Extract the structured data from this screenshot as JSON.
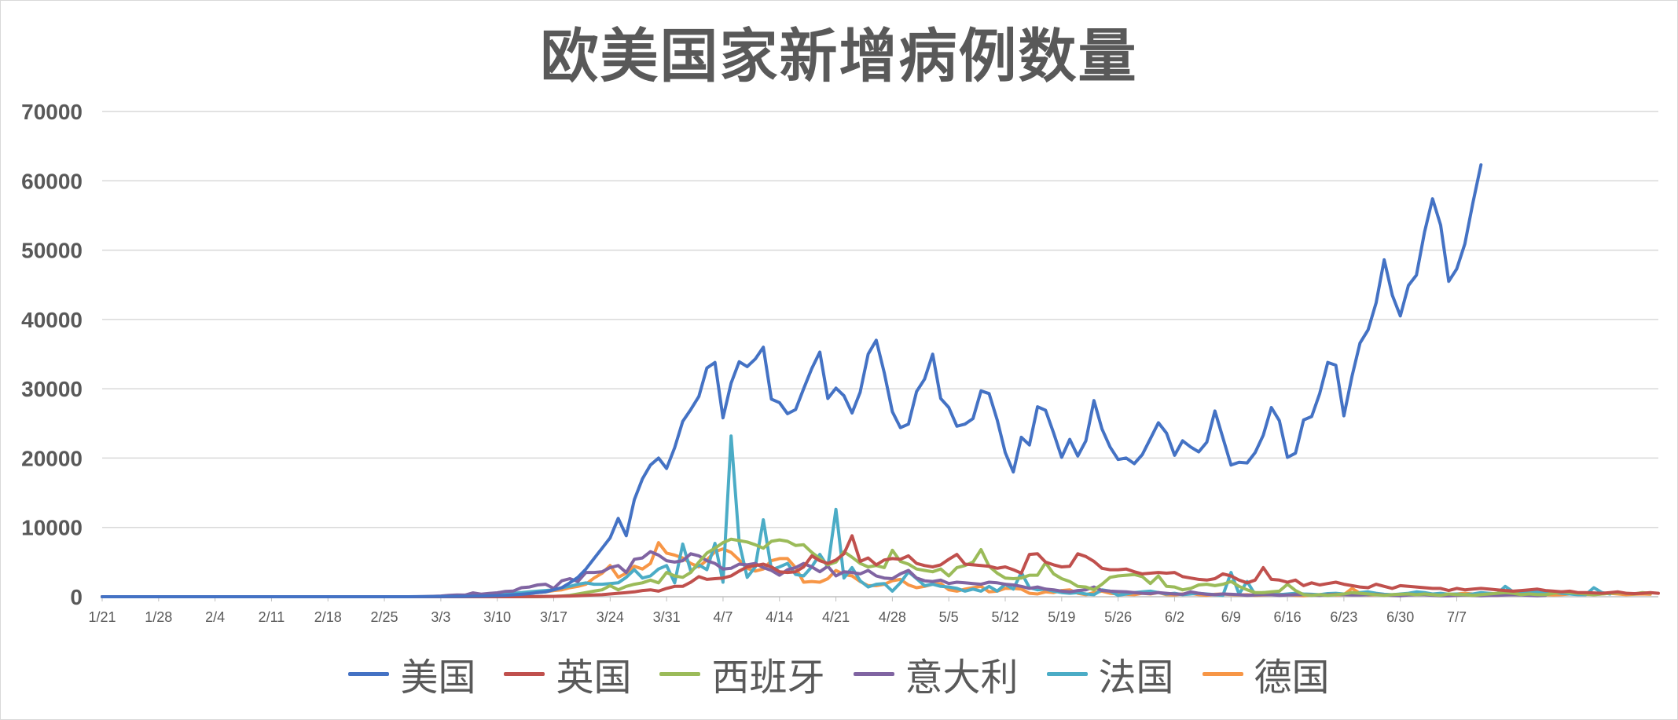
{
  "chart_data": {
    "type": "line",
    "title": "欧美国家新增病例数量",
    "xlabel": "",
    "ylabel": "",
    "ylim": [
      0,
      70000
    ],
    "yticks": [
      "0",
      "10000",
      "20000",
      "30000",
      "40000",
      "50000",
      "60000",
      "70000"
    ],
    "x_tick_labels": [
      "1/21",
      "1/28",
      "2/4",
      "2/11",
      "2/18",
      "2/25",
      "3/3",
      "3/10",
      "3/17",
      "3/24",
      "3/31",
      "4/7",
      "4/14",
      "4/21",
      "4/28",
      "5/5",
      "5/12",
      "5/19",
      "5/26",
      "6/2",
      "6/9",
      "6/16",
      "6/23",
      "6/30",
      "7/7"
    ],
    "x_start": "1/21",
    "x_end": "7/8",
    "grid": true,
    "legend_position": "bottom",
    "series": [
      {
        "name": "美国",
        "color": "#4472c4",
        "values": [
          0,
          0,
          0,
          0,
          0,
          0,
          0,
          0,
          0,
          0,
          0,
          0,
          0,
          0,
          0,
          0,
          0,
          0,
          0,
          0,
          0,
          0,
          0,
          0,
          0,
          0,
          0,
          0,
          0,
          0,
          0,
          0,
          0,
          0,
          0,
          0,
          0,
          0,
          0,
          10,
          10,
          20,
          30,
          40,
          50,
          60,
          80,
          100,
          120,
          160,
          200,
          280,
          350,
          450,
          600,
          700,
          1000,
          1300,
          2000,
          2800,
          4000,
          5500,
          7000,
          8500,
          11300,
          8800,
          14000,
          17000,
          19000,
          20000,
          18500,
          21500,
          25300,
          27000,
          28900,
          33000,
          33800,
          25800,
          30800,
          33900,
          33200,
          34300,
          36000,
          28500,
          28000,
          26400,
          27000,
          30000,
          32900,
          35300,
          28600,
          30100,
          29000,
          26500,
          29500,
          35000,
          37000,
          32300,
          26700,
          24400,
          24900,
          29600,
          31400,
          35000,
          28600,
          27300,
          24600,
          24900,
          25700,
          29700,
          29300,
          25500,
          20800,
          18000,
          23000,
          21900,
          27400,
          26900,
          23600,
          20100,
          22700,
          20300,
          22500,
          28300,
          24200,
          21600,
          19800,
          20000,
          19200,
          20500,
          22800,
          25100,
          23600,
          20400,
          22500,
          21600,
          20900,
          22300,
          26800,
          22900,
          19000,
          19400,
          19300,
          20800,
          23300,
          27300,
          25400,
          20100,
          20700,
          25500,
          26000,
          29300,
          33800,
          33400,
          26100,
          31800,
          36600,
          38500,
          42400,
          48600,
          43500,
          40500,
          44900,
          46400,
          52600,
          57400,
          53600,
          45500,
          47300,
          50900,
          56800,
          62300
        ]
      },
      {
        "name": "英国",
        "color": "#c0504d",
        "values": [
          0,
          0,
          0,
          0,
          0,
          0,
          0,
          0,
          0,
          0,
          0,
          0,
          0,
          0,
          0,
          0,
          0,
          0,
          0,
          0,
          0,
          0,
          0,
          0,
          0,
          0,
          0,
          0,
          0,
          0,
          0,
          0,
          0,
          0,
          0,
          0,
          0,
          0,
          0,
          0,
          0,
          0,
          0,
          0,
          0,
          0,
          0,
          0,
          0,
          0,
          0,
          0,
          10,
          20,
          30,
          40,
          50,
          80,
          100,
          150,
          200,
          250,
          300,
          400,
          500,
          600,
          700,
          900,
          1000,
          800,
          1200,
          1500,
          1500,
          2100,
          2900,
          2500,
          2600,
          2700,
          3000,
          3700,
          4300,
          4500,
          4700,
          4300,
          3600,
          3500,
          3600,
          4300,
          5900,
          5200,
          4800,
          5300,
          6200,
          8800,
          5100,
          5600,
          4600,
          5300,
          5500,
          5400,
          5900,
          4800,
          4500,
          4300,
          4600,
          5400,
          6100,
          4700,
          4600,
          4500,
          4400,
          4100,
          4300,
          3900,
          3400,
          6100,
          6200,
          5000,
          4600,
          4300,
          4400,
          6200,
          5800,
          5100,
          4100,
          3900,
          3900,
          4000,
          3600,
          3300,
          3400,
          3500,
          3400,
          3500,
          2900,
          2700,
          2500,
          2400,
          2600,
          3300,
          3000,
          2400,
          2000,
          2400,
          4200,
          2500,
          2400,
          2100,
          2400,
          1600,
          2000,
          1700,
          1900,
          2100,
          1800,
          1600,
          1400,
          1300,
          1800,
          1500,
          1200,
          1600,
          1500,
          1400,
          1300,
          1200,
          1200,
          900,
          1200,
          1000,
          1100,
          1200,
          1100,
          1000,
          900,
          800,
          900,
          1000,
          1100,
          900,
          800,
          700,
          800,
          600,
          600,
          550,
          500,
          600,
          700,
          500,
          450,
          500,
          600,
          500
        ]
      },
      {
        "name": "西班牙",
        "color": "#9bbb59",
        "values": [
          0,
          0,
          0,
          0,
          0,
          0,
          0,
          0,
          0,
          0,
          0,
          0,
          0,
          0,
          0,
          0,
          0,
          0,
          0,
          0,
          0,
          0,
          0,
          0,
          0,
          0,
          0,
          0,
          0,
          0,
          0,
          0,
          0,
          0,
          0,
          0,
          0,
          0,
          0,
          0,
          0,
          0,
          0,
          0,
          0,
          0,
          0,
          0,
          0,
          0,
          0,
          0,
          0,
          0,
          0,
          30,
          60,
          100,
          200,
          400,
          600,
          800,
          1000,
          1600,
          1000,
          1500,
          1800,
          2000,
          2400,
          2000,
          3500,
          3000,
          2800,
          3500,
          5000,
          6300,
          7000,
          7800,
          8300,
          8100,
          7900,
          7500,
          7000,
          8000,
          8200,
          8000,
          7400,
          7500,
          6400,
          5500,
          4600,
          5000,
          6500,
          5700,
          4800,
          4300,
          4500,
          4200,
          6700,
          5100,
          4700,
          4000,
          3800,
          3600,
          4000,
          3000,
          4200,
          4500,
          5000,
          6800,
          4400,
          3400,
          2700,
          2600,
          2700,
          3100,
          3100,
          4900,
          3300,
          2600,
          2200,
          1500,
          1400,
          1000,
          1800,
          2800,
          3000,
          3100,
          3200,
          2900,
          1900,
          3000,
          1500,
          1400,
          1000,
          1200,
          1700,
          1800,
          1600,
          1800,
          2200,
          1500,
          1000,
          600,
          600,
          700,
          800,
          1800,
          900,
          300,
          200,
          300,
          200,
          300,
          400,
          600,
          500,
          400,
          300,
          200,
          300,
          350,
          400,
          300,
          400,
          300,
          200,
          400,
          300,
          300,
          200,
          300,
          400,
          500,
          600,
          500,
          300,
          400,
          300,
          300,
          500,
          700,
          600,
          500,
          400,
          300,
          400,
          500,
          600,
          500,
          400,
          600,
          500
        ]
      },
      {
        "name": "意大利",
        "color": "#8064a2",
        "values": [
          0,
          0,
          0,
          0,
          0,
          0,
          0,
          0,
          0,
          0,
          0,
          0,
          0,
          0,
          0,
          0,
          0,
          0,
          0,
          0,
          0,
          0,
          0,
          0,
          0,
          0,
          0,
          0,
          0,
          0,
          0,
          0,
          0,
          0,
          0,
          0,
          0,
          0,
          0,
          0,
          20,
          60,
          100,
          200,
          250,
          240,
          560,
          370,
          480,
          570,
          770,
          830,
          1300,
          1400,
          1700,
          1800,
          1200,
          2300,
          2600,
          2200,
          3500,
          3500,
          3600,
          4200,
          4500,
          3500,
          5400,
          5600,
          6500,
          6000,
          5200,
          5000,
          5200,
          6200,
          5900,
          5200,
          4800,
          4000,
          4100,
          4700,
          4600,
          4800,
          4200,
          3800,
          3100,
          3900,
          4200,
          4800,
          4300,
          3600,
          4400,
          3000,
          3600,
          3500,
          3300,
          3800,
          3000,
          2700,
          2600,
          3300,
          3800,
          2700,
          2300,
          2200,
          2400,
          1900,
          2100,
          2000,
          1900,
          1800,
          2100,
          2000,
          1800,
          1700,
          1500,
          1200,
          1400,
          1100,
          1000,
          800,
          700,
          900,
          1000,
          1400,
          900,
          800,
          750,
          700,
          600,
          500,
          450,
          600,
          500,
          400,
          350,
          700,
          500,
          350,
          300,
          400,
          350,
          300,
          200,
          250,
          300,
          300,
          200,
          250,
          300,
          300,
          250,
          200,
          300,
          350,
          300,
          250,
          250,
          300,
          350,
          250,
          200,
          150,
          250,
          300,
          300,
          200,
          150,
          150,
          200,
          250,
          200,
          150,
          200,
          200,
          250,
          300,
          250,
          200,
          150,
          200
        ]
      },
      {
        "name": "法国",
        "color": "#4bacc6",
        "values": [
          0,
          0,
          0,
          0,
          0,
          0,
          0,
          0,
          0,
          0,
          0,
          0,
          0,
          0,
          0,
          0,
          0,
          0,
          0,
          0,
          0,
          0,
          0,
          0,
          0,
          0,
          0,
          0,
          0,
          0,
          0,
          0,
          0,
          0,
          0,
          0,
          0,
          0,
          0,
          0,
          0,
          10,
          20,
          30,
          50,
          60,
          100,
          200,
          200,
          300,
          400,
          500,
          600,
          700,
          800,
          900,
          1000,
          1300,
          1500,
          1800,
          2000,
          1800,
          1800,
          1900,
          2000,
          2800,
          3900,
          2700,
          3000,
          4000,
          4500,
          2000,
          7600,
          3700,
          4600,
          3900,
          7700,
          2100,
          23200,
          7800,
          2800,
          4300,
          11100,
          3900,
          4300,
          4800,
          3200,
          3000,
          4300,
          6100,
          4300,
          12600,
          2700,
          4200,
          2300,
          1400,
          1800,
          1900,
          800,
          2000,
          3600,
          2600,
          1600,
          1800,
          1500,
          1400,
          1200,
          800,
          1100,
          800,
          1500,
          800,
          1800,
          1100,
          3500,
          1300,
          1000,
          1100,
          800,
          600,
          500,
          600,
          400,
          300,
          1000,
          800,
          200,
          400,
          600,
          700,
          800,
          600,
          400,
          500,
          300,
          400,
          500,
          400,
          300,
          200,
          3500,
          400,
          2200,
          300,
          600,
          400,
          300,
          400,
          500,
          400,
          350,
          300,
          450,
          500,
          400,
          350,
          600,
          700,
          500,
          350,
          300,
          400,
          500,
          700,
          600,
          400,
          500,
          350,
          400,
          300,
          400,
          600,
          500,
          400,
          1500,
          700,
          500,
          600,
          700,
          500,
          600,
          500,
          400,
          300,
          300,
          1300,
          600,
          400
        ]
      },
      {
        "name": "德国",
        "color": "#f79646",
        "values": [
          0,
          0,
          0,
          0,
          0,
          0,
          0,
          0,
          0,
          0,
          0,
          0,
          0,
          0,
          0,
          0,
          0,
          0,
          0,
          0,
          0,
          0,
          0,
          0,
          0,
          0,
          0,
          0,
          0,
          0,
          0,
          0,
          0,
          0,
          0,
          0,
          0,
          0,
          0,
          0,
          0,
          0,
          0,
          20,
          40,
          60,
          100,
          150,
          200,
          250,
          300,
          350,
          400,
          500,
          600,
          700,
          900,
          1000,
          1300,
          1500,
          1800,
          2700,
          3400,
          4500,
          2800,
          3400,
          4400,
          4000,
          4800,
          7800,
          6300,
          6000,
          5600,
          4800,
          4300,
          5300,
          6500,
          6900,
          6400,
          5300,
          4100,
          3700,
          4000,
          5200,
          5500,
          5500,
          4200,
          2100,
          2200,
          2100,
          2600,
          3800,
          3200,
          3000,
          2200,
          1600,
          1600,
          1800,
          2300,
          2500,
          1700,
          1300,
          1500,
          1800,
          1900,
          1000,
          800,
          1100,
          1300,
          1500,
          700,
          800,
          1200,
          1200,
          1100,
          500,
          400,
          700,
          600,
          900,
          1000,
          500,
          300,
          600,
          800,
          500,
          400,
          350,
          300,
          500,
          400,
          600,
          300,
          250,
          400,
          500,
          300,
          200,
          350,
          400,
          300,
          250,
          300,
          200,
          250,
          300,
          350,
          300,
          200,
          150,
          250,
          300,
          400,
          250,
          300,
          1200,
          500,
          250,
          300,
          300,
          200,
          250,
          300,
          300,
          350,
          300,
          250,
          300,
          400,
          500,
          400,
          300,
          250,
          200,
          300,
          350,
          400,
          300,
          400,
          300,
          250,
          300,
          400,
          450,
          350,
          300,
          400,
          500,
          400,
          300,
          350,
          400,
          350
        ]
      }
    ]
  }
}
